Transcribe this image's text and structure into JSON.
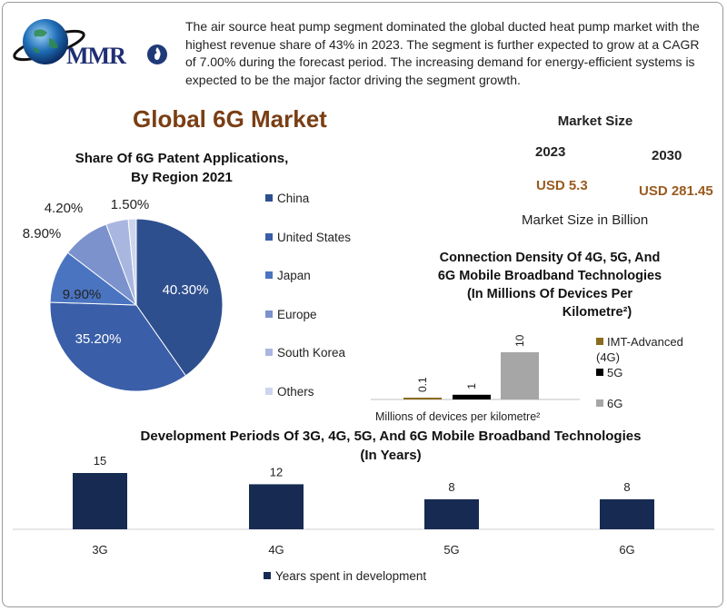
{
  "header": {
    "logo_text": "MMR",
    "intro": "The air source heat pump segment dominated the global ducted heat pump market with the highest revenue share of 43% in 2023. The segment is further expected to grow at a CAGR of 7.00% during the forecast period. The increasing demand for energy-efficient systems is expected to be the major factor driving the segment growth."
  },
  "title": "Global 6G Market",
  "market_size": {
    "title": "Market Size",
    "year_a": "2023",
    "year_b": "2030",
    "value_a": "USD 5.3",
    "value_b": "USD 281.45",
    "unit": "Market Size in Billion"
  },
  "colors": {
    "pie": [
      "#2e4f8e",
      "#3a5ea8",
      "#4a74c0",
      "#7b92cc",
      "#a9b7e0",
      "#cdd5ee"
    ],
    "cd": [
      "#8b6b1e",
      "#000000",
      "#a6a6a6"
    ],
    "dev": "#172b52"
  },
  "chart_data": [
    {
      "type": "pie",
      "title": "Share Of 6G Patent Applications, By Region 2021",
      "title_lines": [
        "Share Of 6G Patent Applications,",
        "By Region 2021"
      ],
      "labels": [
        "China",
        "United States",
        "Japan",
        "Europe",
        "South Korea",
        "Others"
      ],
      "values": [
        40.3,
        35.2,
        9.9,
        8.9,
        4.2,
        1.5
      ],
      "data_labels": [
        "40.30%",
        "35.20%",
        "9.90%",
        "8.90%",
        "4.20%",
        "1.50%"
      ],
      "legend": "right"
    },
    {
      "type": "bar",
      "title": "Connection Density Of 4G, 5G, And 6G Mobile Broadband Technologies (In Millions Of Devices Per Kilometre²)",
      "title_lines": [
        "Connection Density Of 4G, 5G, And",
        "6G Mobile Broadband Technologies",
        "(In Millions Of Devices Per",
        "Kilometre²)"
      ],
      "xlabel": "Millions of devices per kilometre²",
      "series": [
        {
          "name": "IMT-Advanced (4G)",
          "value": 0.1,
          "label": "0.1"
        },
        {
          "name": "5G",
          "value": 1,
          "label": "1"
        },
        {
          "name": "6G",
          "value": 10,
          "label": "10"
        }
      ],
      "legend_lines": [
        [
          "IMT-Advanced",
          "(4G)"
        ],
        [
          "5G"
        ],
        [
          "6G"
        ]
      ],
      "legend": "right"
    },
    {
      "type": "bar",
      "title": "Development Periods Of 3G, 4G, 5G, And 6G Mobile Broadband Technologies (In Years)",
      "title_lines": [
        "Development Periods Of 3G, 4G, 5G, And 6G Mobile Broadband Technologies",
        "(In Years)"
      ],
      "categories": [
        "3G",
        "4G",
        "5G",
        "6G"
      ],
      "series": [
        {
          "name": "Years spent in development",
          "values": [
            15,
            12,
            8,
            8
          ]
        }
      ],
      "legend": "bottom"
    }
  ]
}
